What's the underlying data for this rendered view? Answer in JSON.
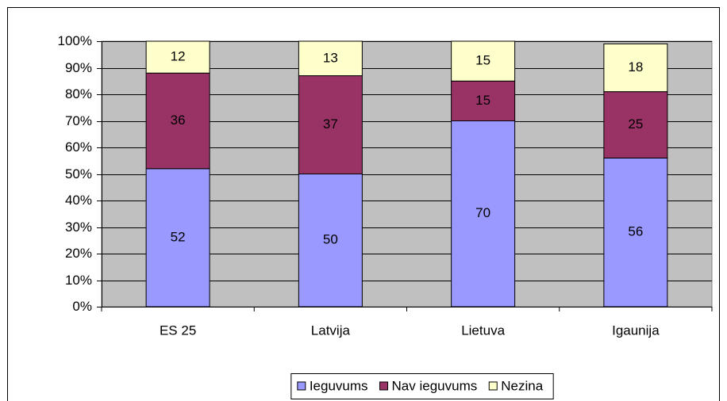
{
  "chart_data": {
    "type": "stacked_bar",
    "categories": [
      "ES 25",
      "Latvija",
      "Lietuva",
      "Igaunija"
    ],
    "series": [
      {
        "name": "Ieguvums",
        "color": "#9999ff",
        "values": [
          52,
          50,
          70,
          56
        ]
      },
      {
        "name": "Nav ieguvums",
        "color": "#993366",
        "values": [
          36,
          37,
          15,
          25
        ]
      },
      {
        "name": "Nezina",
        "color": "#ffffcc",
        "values": [
          12,
          13,
          15,
          18
        ]
      }
    ],
    "ylim": [
      0,
      100
    ],
    "yticks": [
      {
        "value": 0,
        "label": "0%"
      },
      {
        "value": 10,
        "label": "10%"
      },
      {
        "value": 20,
        "label": "20%"
      },
      {
        "value": 30,
        "label": "30%"
      },
      {
        "value": 40,
        "label": "40%"
      },
      {
        "value": 50,
        "label": "50%"
      },
      {
        "value": 60,
        "label": "60%"
      },
      {
        "value": 70,
        "label": "70%"
      },
      {
        "value": 80,
        "label": "80%"
      },
      {
        "value": 90,
        "label": "90%"
      },
      {
        "value": 100,
        "label": "100%"
      }
    ],
    "grid": true,
    "legend": "bottom",
    "plot_background": "#c0c0c0"
  }
}
